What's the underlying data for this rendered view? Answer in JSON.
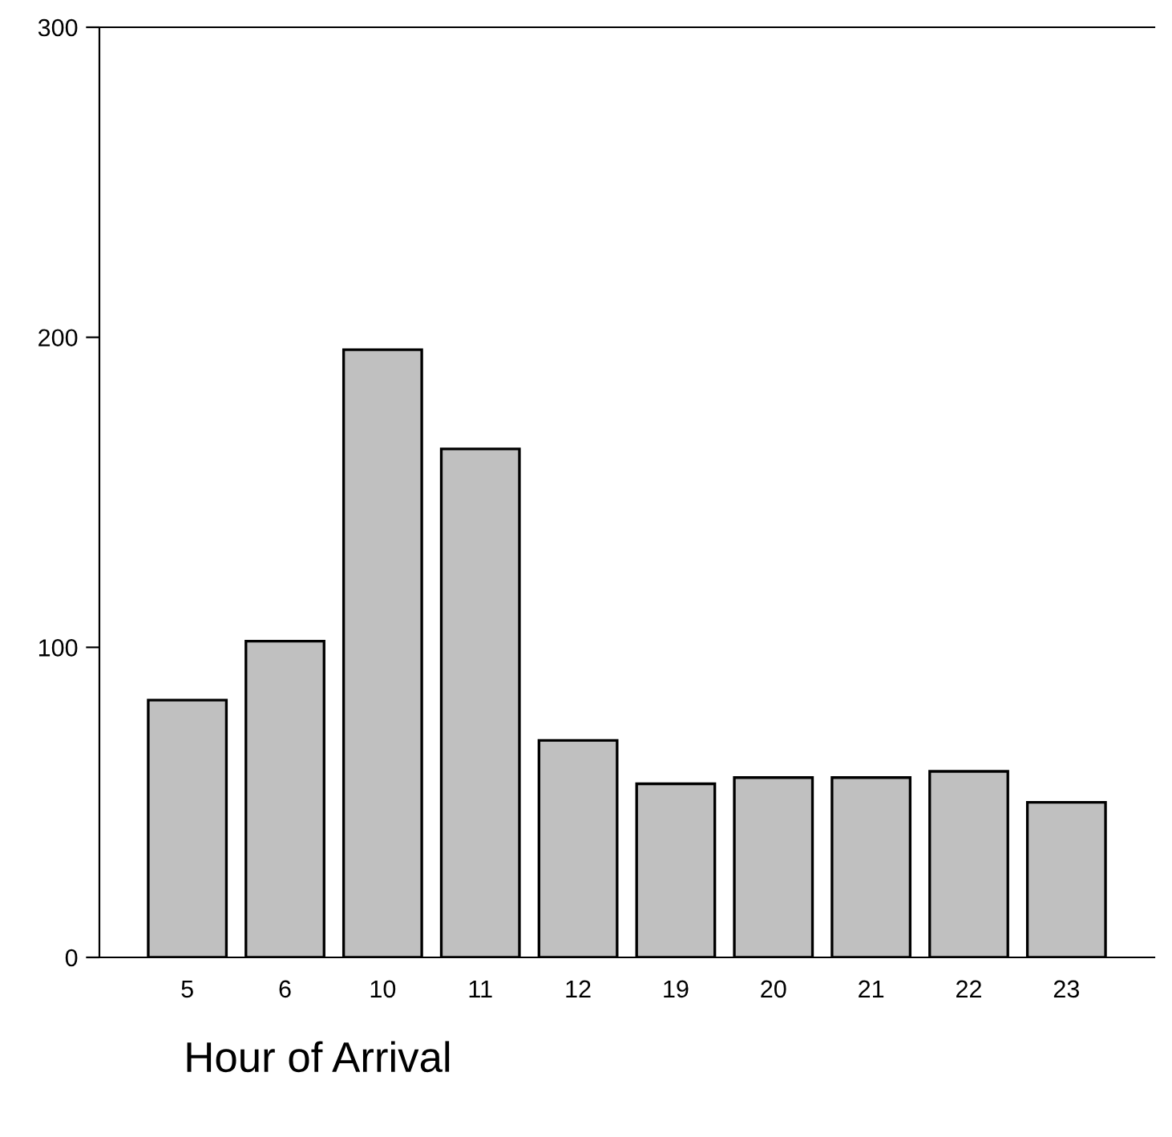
{
  "chart_data": {
    "type": "bar",
    "xlabel": "Hour of Arrival",
    "categories": [
      "5",
      "6",
      "10",
      "11",
      "12",
      "19",
      "20",
      "21",
      "22",
      "23"
    ],
    "values": [
      83,
      102,
      196,
      164,
      70,
      56,
      58,
      58,
      60,
      50
    ],
    "color": "#c0c0c0",
    "ylim": [
      0,
      300
    ],
    "yticks": [
      0,
      100,
      200,
      300
    ],
    "grid": false,
    "legend": false
  }
}
